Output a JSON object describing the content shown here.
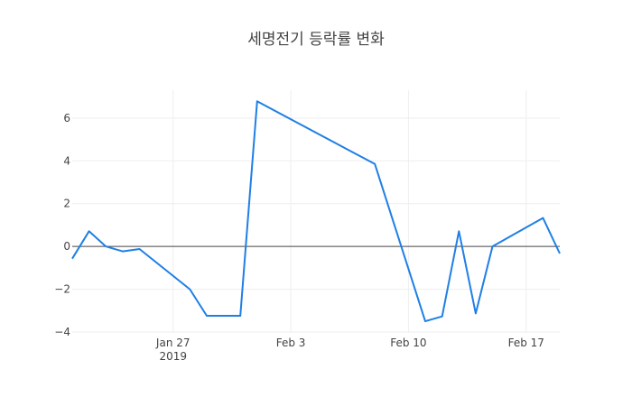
{
  "colors": {
    "series": "#1f7fe5",
    "grid": "#eeeeee",
    "zero_line": "#444444",
    "text": "#444444"
  },
  "chart_data": {
    "type": "line",
    "title": "세명전기 등락률 변화",
    "xlabel": "",
    "ylabel": "",
    "x_tick_labels": [
      {
        "label": "Jan 27",
        "sub": "2019",
        "date": "2019-01-27"
      },
      {
        "label": "Feb 3",
        "sub": "",
        "date": "2019-02-03"
      },
      {
        "label": "Feb 10",
        "sub": "",
        "date": "2019-02-10"
      },
      {
        "label": "Feb 17",
        "sub": "",
        "date": "2019-02-17"
      }
    ],
    "y_tick_labels": [
      "−4",
      "−2",
      "0",
      "2",
      "4",
      "6"
    ],
    "y_ticks": [
      -4,
      -2,
      0,
      2,
      4,
      6
    ],
    "xlim": [
      "2019-01-21",
      "2019-02-19"
    ],
    "ylim": [
      -4,
      7.3
    ],
    "grid": true,
    "series": [
      {
        "x": [
          "2019-01-21",
          "2019-01-22",
          "2019-01-23",
          "2019-01-24",
          "2019-01-25",
          "2019-01-28",
          "2019-01-29",
          "2019-01-31",
          "2019-02-01",
          "2019-02-08",
          "2019-02-11",
          "2019-02-12",
          "2019-02-13",
          "2019-02-14",
          "2019-02-15",
          "2019-02-18",
          "2019-02-19"
        ],
        "y": [
          -0.57,
          0.71,
          0.0,
          -0.23,
          -0.12,
          -2.0,
          -3.24,
          -3.24,
          6.78,
          3.85,
          -3.5,
          -3.27,
          0.71,
          -3.13,
          0.0,
          1.33,
          -0.33
        ]
      }
    ]
  }
}
